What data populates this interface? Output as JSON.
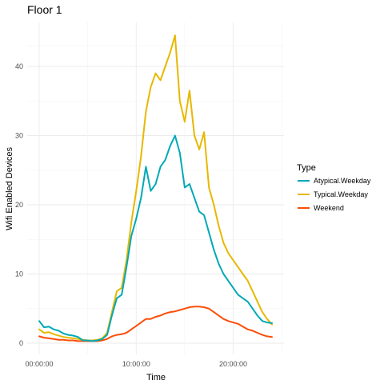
{
  "chart_data": {
    "type": "line",
    "title": "Floor 1",
    "xlabel": "Time",
    "ylabel": "Wifi Enabled Devices",
    "xlim": [
      0,
      24
    ],
    "ylim": [
      0,
      46
    ],
    "x_ticks": [
      {
        "value": 0,
        "label": "00:00:00"
      },
      {
        "value": 10,
        "label": "10:00:00"
      },
      {
        "value": 20,
        "label": "20:00:00"
      }
    ],
    "y_ticks": [
      0,
      10,
      20,
      30,
      40
    ],
    "grid": true,
    "legend": {
      "title": "Type",
      "position": "right"
    },
    "series": [
      {
        "name": "Atypical.Weekday",
        "color": "#00A9B6",
        "x": [
          0,
          0.5,
          1,
          1.5,
          2,
          2.5,
          3,
          3.5,
          4,
          4.5,
          5,
          5.5,
          6,
          6.5,
          7,
          7.5,
          8,
          8.5,
          9,
          9.5,
          10,
          10.5,
          11,
          11.5,
          12,
          12.5,
          13,
          13.5,
          14,
          14.5,
          15,
          15.5,
          16,
          16.5,
          17,
          17.5,
          18,
          18.5,
          19,
          19.5,
          20,
          20.5,
          21,
          21.5,
          22,
          22.5,
          23,
          23.5,
          24
        ],
        "values": [
          3.2,
          2.3,
          2.4,
          2.0,
          1.8,
          1.4,
          1.2,
          1.1,
          0.9,
          0.4,
          0.4,
          0.3,
          0.4,
          0.6,
          1.2,
          4.0,
          6.5,
          7.0,
          11.0,
          15.5,
          18.0,
          21.0,
          25.5,
          22.0,
          23.0,
          25.5,
          26.5,
          28.5,
          30.0,
          27.5,
          22.5,
          23.0,
          21.0,
          19.0,
          18.5,
          16.0,
          13.5,
          11.5,
          10.0,
          9.0,
          8.0,
          7.0,
          6.5,
          6.0,
          5.0,
          4.0,
          3.2,
          3.0,
          2.9
        ]
      },
      {
        "name": "Typical.Weekday",
        "color": "#E7B800",
        "x": [
          0,
          0.5,
          1,
          1.5,
          2,
          2.5,
          3,
          3.5,
          4,
          4.5,
          5,
          5.5,
          6,
          6.5,
          7,
          7.5,
          8,
          8.5,
          9,
          9.5,
          10,
          10.5,
          11,
          11.5,
          12,
          12.5,
          13,
          13.5,
          14,
          14.5,
          15,
          15.5,
          16,
          16.5,
          17,
          17.5,
          18,
          18.5,
          19,
          19.5,
          20,
          20.5,
          21,
          21.5,
          22,
          22.5,
          23,
          23.5,
          24
        ],
        "values": [
          2.0,
          1.5,
          1.6,
          1.3,
          1.1,
          0.9,
          0.8,
          0.7,
          0.6,
          0.5,
          0.4,
          0.4,
          0.5,
          0.7,
          1.5,
          4.5,
          7.5,
          8.0,
          12.0,
          17.5,
          22.0,
          27.0,
          33.5,
          37.0,
          39.0,
          38.0,
          40.0,
          42.0,
          44.5,
          35.0,
          32.0,
          36.5,
          30.0,
          28.0,
          30.5,
          22.5,
          20.0,
          17.0,
          14.5,
          13.0,
          12.0,
          11.0,
          10.0,
          9.0,
          7.5,
          6.0,
          4.5,
          3.5,
          2.7
        ]
      },
      {
        "name": "Weekend",
        "color": "#FC4E07",
        "x": [
          0,
          0.5,
          1,
          1.5,
          2,
          2.5,
          3,
          3.5,
          4,
          4.5,
          5,
          5.5,
          6,
          6.5,
          7,
          7.5,
          8,
          8.5,
          9,
          9.5,
          10,
          10.5,
          11,
          11.5,
          12,
          12.5,
          13,
          13.5,
          14,
          14.5,
          15,
          15.5,
          16,
          16.5,
          17,
          17.5,
          18,
          18.5,
          19,
          19.5,
          20,
          20.5,
          21,
          21.5,
          22,
          22.5,
          23,
          23.5,
          24
        ],
        "values": [
          1.0,
          0.8,
          0.7,
          0.6,
          0.5,
          0.5,
          0.4,
          0.4,
          0.3,
          0.3,
          0.3,
          0.3,
          0.3,
          0.4,
          0.6,
          1.0,
          1.2,
          1.3,
          1.5,
          2.0,
          2.5,
          3.0,
          3.5,
          3.5,
          3.8,
          4.0,
          4.3,
          4.5,
          4.6,
          4.8,
          5.0,
          5.2,
          5.3,
          5.3,
          5.2,
          5.0,
          4.5,
          4.0,
          3.5,
          3.2,
          3.0,
          2.8,
          2.4,
          2.0,
          1.8,
          1.5,
          1.2,
          1.0,
          0.9
        ]
      }
    ]
  }
}
